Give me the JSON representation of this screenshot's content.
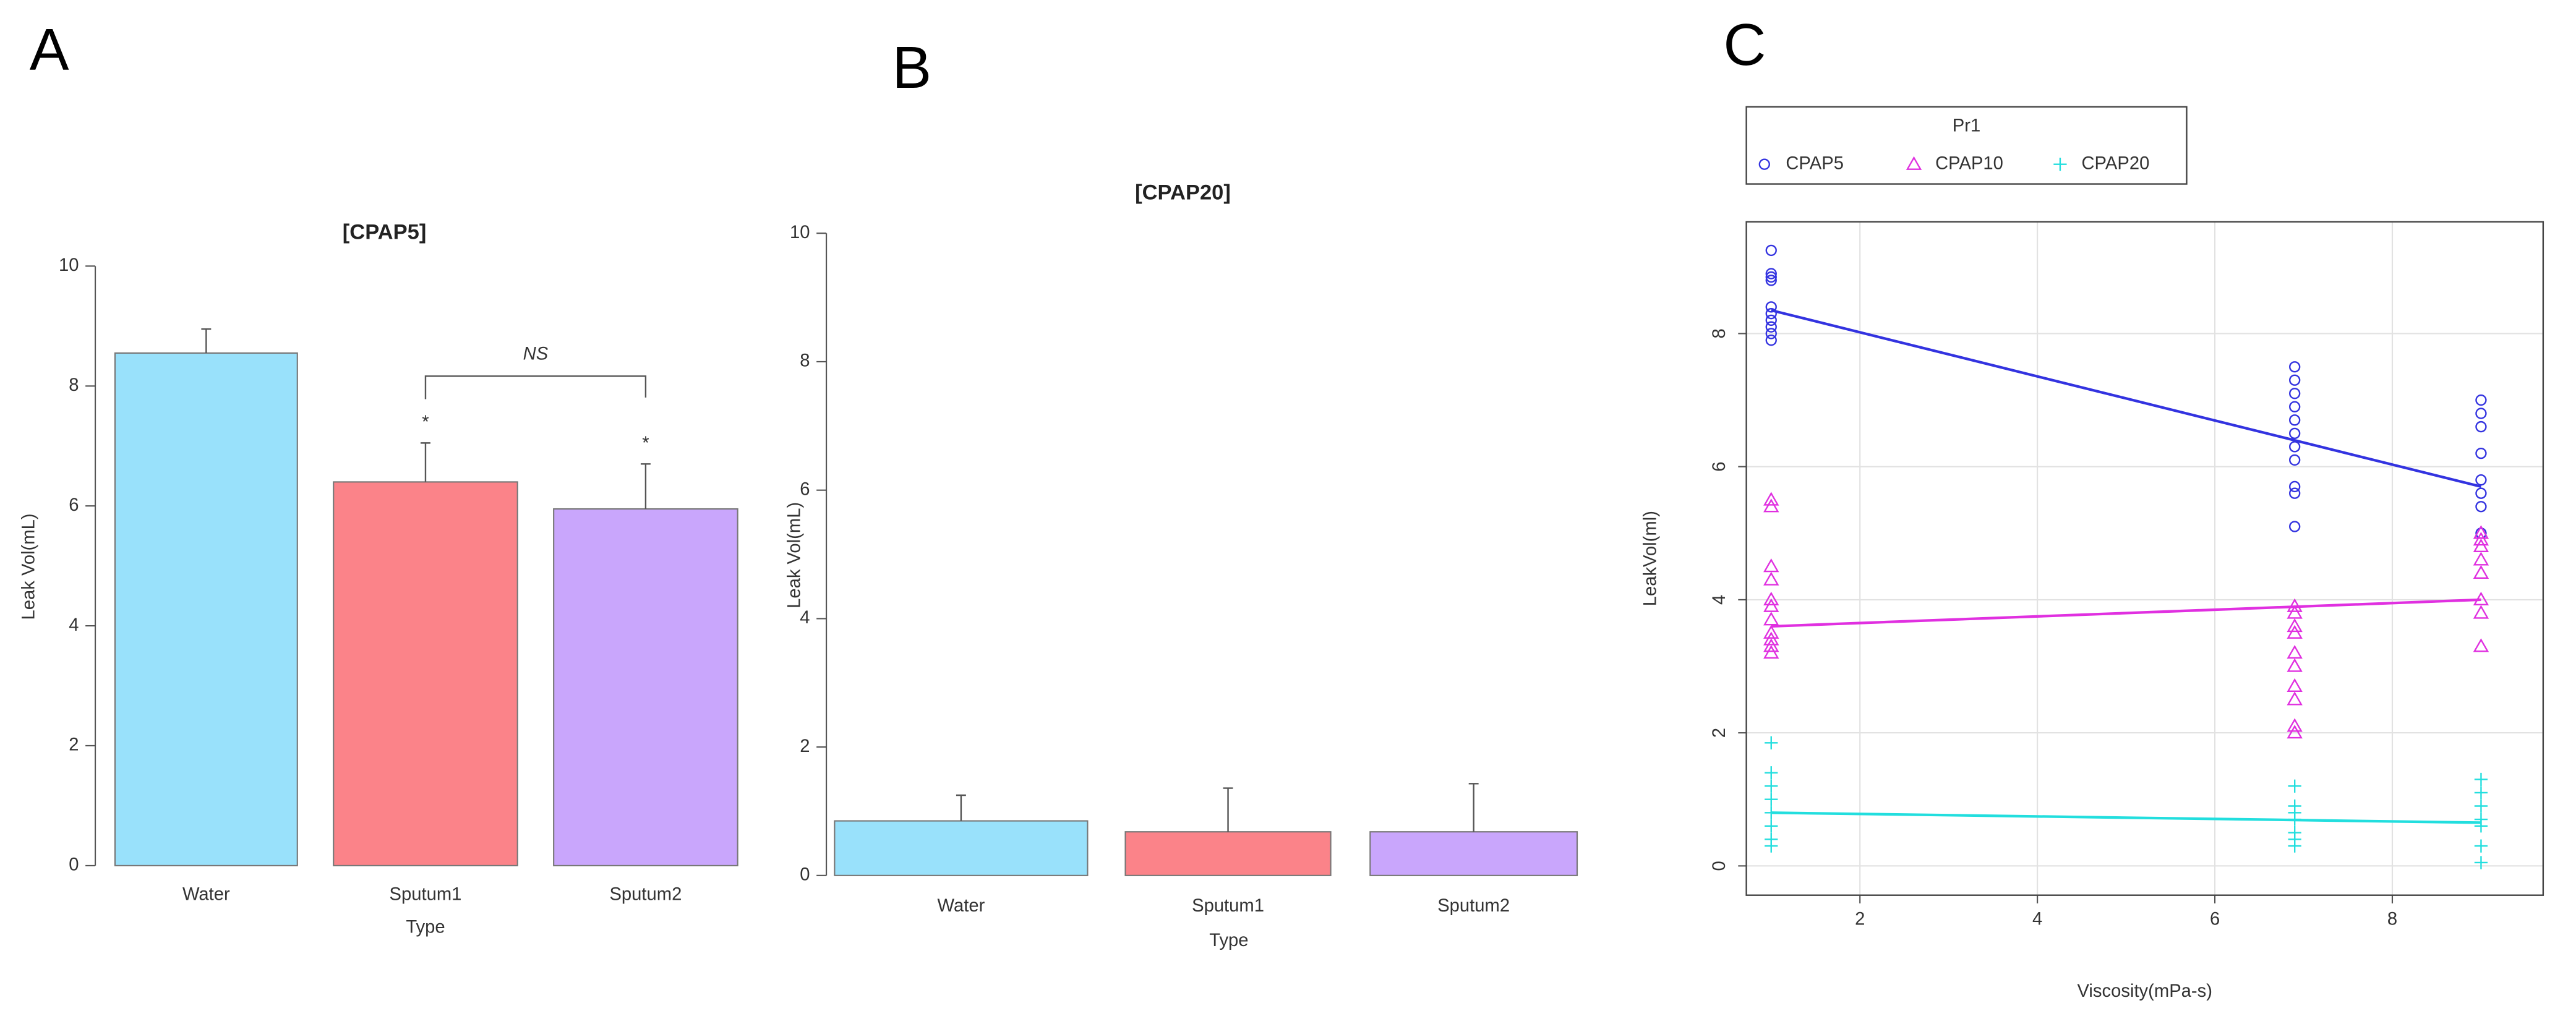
{
  "chart_data": [
    {
      "type": "bar",
      "label": "A",
      "title": "[CPAP5]",
      "y_label": "Leak Vol(mL)",
      "x_label": "Type",
      "categories": [
        "Water",
        "Sputum1",
        "Sputum2"
      ],
      "values": [
        8.55,
        6.4,
        5.95
      ],
      "errors": [
        0.4,
        0.65,
        0.75
      ],
      "colors": [
        "#99e1fb",
        "#fb8389",
        "#c9a6fc"
      ],
      "ylim": [
        0,
        10
      ],
      "yticks": [
        0,
        2,
        4,
        6,
        8,
        10
      ],
      "annotations": [
        "*",
        "*",
        "NS"
      ]
    },
    {
      "type": "bar",
      "label": "B",
      "title": "[CPAP20]",
      "y_label": "Leak Vol(mL)",
      "x_label": "Type",
      "categories": [
        "Water",
        "Sputum1",
        "Sputum2"
      ],
      "values": [
        0.85,
        0.68,
        0.68
      ],
      "errors": [
        0.4,
        0.68,
        0.75
      ],
      "colors": [
        "#99e1fb",
        "#fb8389",
        "#c9a6fc"
      ],
      "ylim": [
        0,
        10
      ],
      "yticks": [
        0,
        2,
        4,
        6,
        8,
        10
      ]
    },
    {
      "type": "scatter",
      "label": "C",
      "x_label": "Viscosity(mPa-s)",
      "y_label": "LeakVol(ml)",
      "legend_title": "Pr1",
      "legend": "top",
      "grid": true,
      "xlim": [
        0.72,
        9.7
      ],
      "xticks": [
        2,
        4,
        6,
        8
      ],
      "ylim": [
        -0.44,
        9.68
      ],
      "yticks": [
        0,
        2,
        4,
        6,
        8
      ],
      "series": [
        {
          "name": "CPAP5",
          "color": "#3333e0",
          "marker": "circle",
          "x": [
            1,
            1,
            1,
            1,
            1,
            1,
            1,
            1,
            1,
            1,
            6.9,
            6.9,
            6.9,
            6.9,
            6.9,
            6.9,
            6.9,
            6.9,
            6.9,
            6.9,
            6.9,
            9,
            9,
            9,
            9,
            9,
            9,
            9,
            9
          ],
          "values": [
            9.25,
            8.9,
            8.85,
            8.8,
            8.4,
            8.3,
            8.2,
            8.1,
            8.0,
            7.9,
            7.5,
            7.3,
            7.1,
            6.9,
            6.7,
            6.5,
            6.3,
            6.1,
            5.7,
            5.6,
            5.1,
            7.0,
            6.8,
            6.6,
            6.2,
            5.8,
            5.6,
            5.4,
            5.0
          ],
          "fit": {
            "x": [
              1,
              9
            ],
            "y": [
              8.35,
              5.7
            ]
          }
        },
        {
          "name": "CPAP10",
          "color": "#e030e0",
          "marker": "triangle",
          "x": [
            1,
            1,
            1,
            1,
            1,
            1,
            1,
            1,
            1,
            1,
            1,
            6.9,
            6.9,
            6.9,
            6.9,
            6.9,
            6.9,
            6.9,
            6.9,
            6.9,
            6.9,
            9,
            9,
            9,
            9,
            9,
            9,
            9,
            9
          ],
          "values": [
            5.5,
            5.4,
            4.5,
            4.3,
            4.0,
            3.9,
            3.7,
            3.5,
            3.4,
            3.3,
            3.2,
            3.9,
            3.8,
            3.6,
            3.5,
            3.2,
            3.0,
            2.7,
            2.5,
            2.1,
            2.0,
            5.0,
            4.9,
            4.8,
            4.6,
            4.4,
            4.0,
            3.8,
            3.3
          ],
          "fit": {
            "x": [
              1,
              9
            ],
            "y": [
              3.6,
              4.0
            ]
          }
        },
        {
          "name": "CPAP20",
          "color": "#22dede",
          "marker": "plus",
          "x": [
            1,
            1,
            1,
            1,
            1,
            1,
            1,
            1,
            6.9,
            6.9,
            6.9,
            6.9,
            6.9,
            6.9,
            6.9,
            9,
            9,
            9,
            9,
            9,
            9,
            9
          ],
          "values": [
            1.85,
            1.4,
            1.2,
            1.0,
            0.8,
            0.6,
            0.4,
            0.3,
            1.2,
            0.9,
            0.8,
            0.7,
            0.5,
            0.4,
            0.3,
            1.3,
            1.1,
            0.9,
            0.7,
            0.6,
            0.3,
            0.05
          ],
          "fit": {
            "x": [
              1,
              9
            ],
            "y": [
              0.8,
              0.65
            ]
          }
        }
      ]
    }
  ]
}
